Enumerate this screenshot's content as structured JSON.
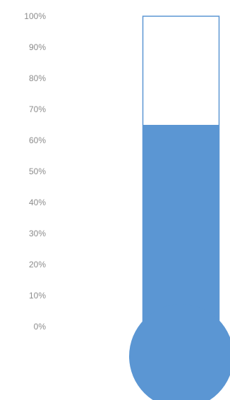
{
  "chart_data": {
    "type": "bar",
    "chart_subtype": "thermometer",
    "value": 0.65,
    "value_percent": 65,
    "ylim": [
      0,
      1
    ],
    "ticks": [
      "0%",
      "10%",
      "20%",
      "30%",
      "40%",
      "50%",
      "60%",
      "70%",
      "80%",
      "90%",
      "100%"
    ],
    "grid": false,
    "legend": "none",
    "colors": {
      "fill": "#5b96d3",
      "tube_outline": "#5b96d3",
      "tick_text": "#8c8c8c"
    }
  }
}
